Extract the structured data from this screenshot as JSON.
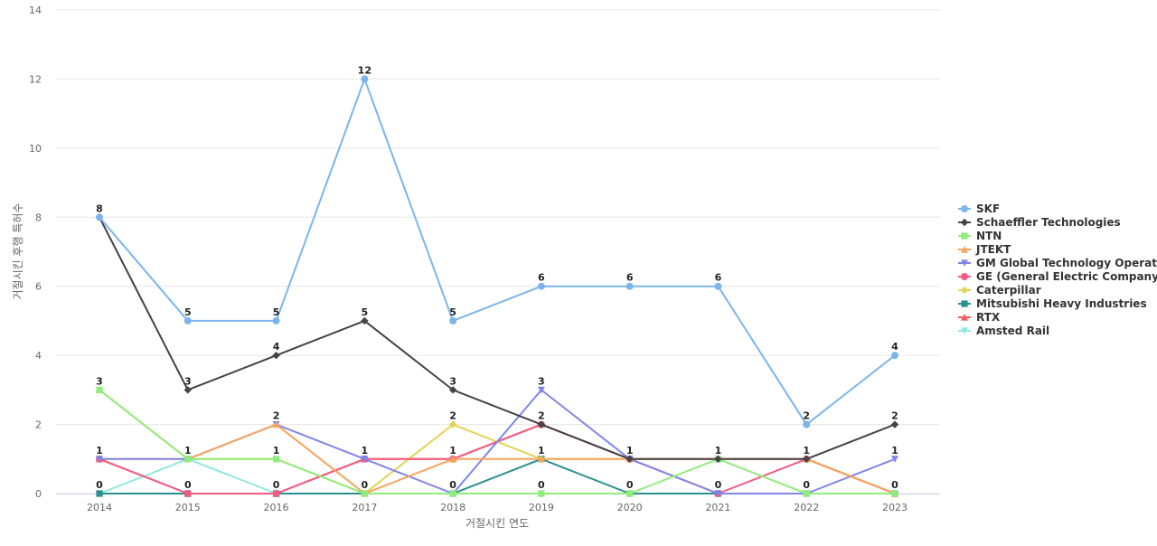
{
  "chart_data": {
    "type": "line",
    "title": "",
    "xlabel": "거절시킨 연도",
    "ylabel": "거절시킨 후행 특허수",
    "categories": [
      "2014",
      "2015",
      "2016",
      "2017",
      "2018",
      "2019",
      "2020",
      "2021",
      "2022",
      "2023"
    ],
    "ylim": [
      0,
      14
    ],
    "yticks": [
      0,
      2,
      4,
      6,
      8,
      10,
      12,
      14
    ],
    "grid": true,
    "legend_position": "right",
    "series": [
      {
        "name": "SKF",
        "color": "#7cb5ec",
        "marker": "circle",
        "values": [
          8,
          5,
          5,
          12,
          5,
          6,
          6,
          6,
          2,
          4
        ],
        "labeled": true
      },
      {
        "name": "Schaeffler Technologies",
        "color": "#434348",
        "marker": "diamond",
        "values": [
          8,
          3,
          4,
          5,
          3,
          2,
          1,
          1,
          1,
          2
        ],
        "labeled": true
      },
      {
        "name": "NTN",
        "color": "#90ed7d",
        "marker": "square",
        "values": [
          3,
          1,
          1,
          0,
          0,
          0,
          0,
          1,
          0,
          0
        ],
        "labeled": false
      },
      {
        "name": "JTEKT",
        "color": "#f7a35c",
        "marker": "triangle",
        "values": [
          3,
          1,
          2,
          0,
          1,
          1,
          1,
          1,
          1,
          0
        ],
        "labeled": true
      },
      {
        "name": "GM Global Technology Operat...",
        "color": "#8085e9",
        "marker": "triangle-down",
        "values": [
          1,
          1,
          2,
          1,
          0,
          3,
          1,
          0,
          0,
          1
        ],
        "labeled": true
      },
      {
        "name": "GE (General Electric Company)",
        "color": "#f15c80",
        "marker": "circle",
        "values": [
          1,
          0,
          0,
          1,
          1,
          2,
          1,
          0,
          1,
          0
        ],
        "labeled": false
      },
      {
        "name": "Caterpillar",
        "color": "#e4d354",
        "marker": "diamond",
        "values": [
          1,
          1,
          1,
          0,
          2,
          1,
          1,
          1,
          1,
          0
        ],
        "labeled": false
      },
      {
        "name": "Mitsubishi Heavy Industries",
        "color": "#2b908f",
        "marker": "square",
        "values": [
          0,
          0,
          0,
          0,
          0,
          1,
          0,
          0,
          0,
          0
        ],
        "labeled": false
      },
      {
        "name": "RTX",
        "color": "#f45b5b",
        "marker": "triangle",
        "values": [
          1,
          0,
          0,
          1,
          1,
          2,
          1,
          1,
          1,
          0
        ],
        "labeled": false
      },
      {
        "name": "Amsted Rail",
        "color": "#91e8e1",
        "marker": "triangle-down",
        "values": [
          0,
          1,
          0,
          0,
          0,
          0,
          0,
          0,
          0,
          0
        ],
        "labeled": false
      }
    ],
    "point_labels": {
      "2014": [
        "8",
        "3",
        "1",
        "0"
      ],
      "2015": [
        "5",
        "3",
        "1",
        "0"
      ],
      "2016": [
        "5",
        "4",
        "2",
        "1",
        "0"
      ],
      "2017": [
        "12",
        "5",
        "1",
        "0"
      ],
      "2018": [
        "5",
        "3",
        "2",
        "1",
        "0"
      ],
      "2019": [
        "6",
        "3",
        "2",
        "1",
        "0"
      ],
      "2020": [
        "6",
        "1",
        "0"
      ],
      "2021": [
        "6",
        "1",
        "0"
      ],
      "2022": [
        "2",
        "1",
        "0"
      ],
      "2023": [
        "4",
        "2",
        "1",
        "0"
      ]
    }
  }
}
